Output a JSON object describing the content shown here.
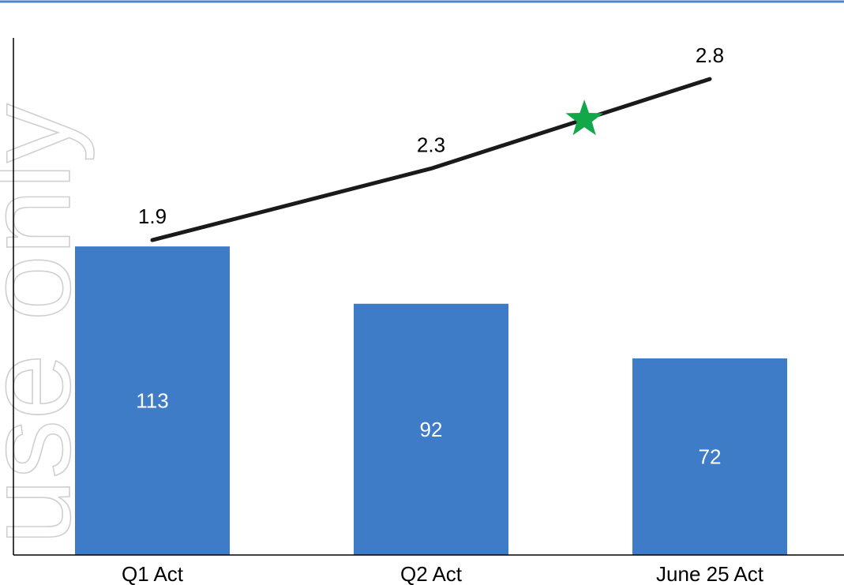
{
  "watermark": "use only",
  "colors": {
    "bar": "#3F7CC8",
    "line": "#1a1a1a",
    "marker": "#12A84A",
    "top_rule": "#4A86C8",
    "axis": "#000000"
  },
  "chart_data": {
    "type": "bar",
    "categories": [
      "Q1 Act",
      "Q2 Act",
      "June 25 Act"
    ],
    "series": [
      {
        "type": "bar",
        "values": [
          113,
          92,
          72
        ]
      },
      {
        "type": "line",
        "values": [
          1.9,
          2.3,
          2.8
        ]
      }
    ],
    "marker": {
      "shape": "star",
      "x_between": [
        "Q2 Act",
        "June 25 Act"
      ],
      "position_fraction": 0.55
    },
    "ylim_bar": [
      0,
      183
    ],
    "ylim_line": [
      0.14,
      3.03
    ],
    "title": "",
    "xlabel": "",
    "ylabel": "",
    "grid": false,
    "legend": "none"
  }
}
